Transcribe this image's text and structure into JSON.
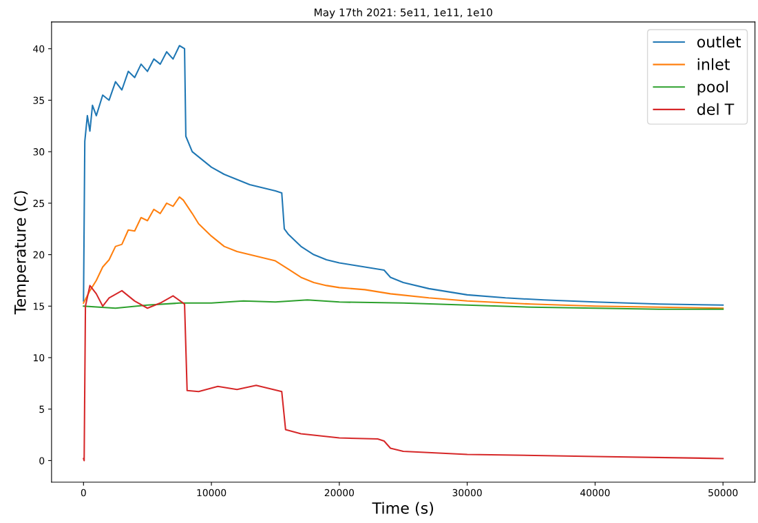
{
  "chart_data": {
    "type": "line",
    "title": "May 17th 2021: 5e11, 1e11, 1e10",
    "xlabel": "Time (s)",
    "ylabel": "Temperature (C)",
    "xlim": [
      -2500,
      52500
    ],
    "ylim": [
      -2.1,
      42.6
    ],
    "xticks": [
      0,
      10000,
      20000,
      30000,
      40000,
      50000
    ],
    "yticks": [
      0,
      5,
      10,
      15,
      20,
      25,
      30,
      35,
      40
    ],
    "grid": false,
    "legend": "top right",
    "marker": "none",
    "line_style": "solid",
    "series": [
      {
        "name": "outlet",
        "color": "#1f77b4",
        "x": [
          0,
          100,
          300,
          500,
          700,
          1000,
          1500,
          2000,
          2500,
          3000,
          3500,
          4000,
          4500,
          5000,
          5500,
          6000,
          6500,
          7000,
          7500,
          7900,
          8000,
          8500,
          9000,
          10000,
          11000,
          12000,
          13000,
          14000,
          15000,
          15500,
          15700,
          16000,
          17000,
          18000,
          19000,
          20000,
          21000,
          22000,
          23000,
          23500,
          24000,
          25000,
          27000,
          30000,
          33000,
          36000,
          40000,
          45000,
          50000
        ],
        "values": [
          15.5,
          31,
          33.5,
          32,
          34.5,
          33.5,
          35.5,
          35,
          36.8,
          36,
          37.8,
          37.2,
          38.5,
          37.8,
          39,
          38.5,
          39.7,
          39,
          40.3,
          40,
          31.5,
          30,
          29.5,
          28.5,
          27.8,
          27.3,
          26.8,
          26.5,
          26.2,
          26,
          22.5,
          22,
          20.8,
          20,
          19.5,
          19.2,
          19,
          18.8,
          18.6,
          18.5,
          17.8,
          17.3,
          16.7,
          16.1,
          15.8,
          15.6,
          15.4,
          15.2,
          15.1
        ]
      },
      {
        "name": "inlet",
        "color": "#ff7f0e",
        "x": [
          0,
          500,
          1000,
          1500,
          2000,
          2500,
          3000,
          3500,
          4000,
          4500,
          5000,
          5500,
          6000,
          6500,
          7000,
          7500,
          7800,
          8500,
          9000,
          10000,
          11000,
          12000,
          13000,
          14000,
          15000,
          16000,
          17000,
          18000,
          19000,
          20000,
          22000,
          24000,
          27000,
          30000,
          35000,
          40000,
          45000,
          50000
        ],
        "values": [
          15.3,
          16.5,
          17.5,
          18.8,
          19.5,
          20.8,
          21,
          22.4,
          22.3,
          23.6,
          23.3,
          24.4,
          24,
          25,
          24.7,
          25.6,
          25.3,
          24,
          23,
          21.8,
          20.8,
          20.3,
          20,
          19.7,
          19.4,
          18.6,
          17.8,
          17.3,
          17,
          16.8,
          16.6,
          16.2,
          15.8,
          15.5,
          15.2,
          15,
          14.9,
          14.8
        ]
      },
      {
        "name": "pool",
        "color": "#2ca02c",
        "x": [
          0,
          2500,
          5000,
          7500,
          10000,
          12500,
          15000,
          17500,
          20000,
          25000,
          30000,
          35000,
          40000,
          45000,
          50000
        ],
        "values": [
          15,
          14.8,
          15.1,
          15.3,
          15.3,
          15.5,
          15.4,
          15.6,
          15.4,
          15.3,
          15.1,
          14.9,
          14.8,
          14.7,
          14.7
        ]
      },
      {
        "name": "del T",
        "color": "#d62728",
        "x": [
          0,
          50,
          150,
          500,
          1000,
          1500,
          2000,
          3000,
          4000,
          5000,
          6000,
          7000,
          7900,
          8100,
          9000,
          10500,
          12000,
          13500,
          15500,
          15800,
          17000,
          20000,
          23000,
          23500,
          24000,
          25000,
          30000,
          40000,
          50000
        ],
        "values": [
          0.2,
          0,
          15,
          17,
          16.2,
          15,
          15.8,
          16.5,
          15.5,
          14.8,
          15.3,
          16,
          15.2,
          6.8,
          6.7,
          7.2,
          6.9,
          7.3,
          6.7,
          3,
          2.6,
          2.2,
          2.1,
          1.9,
          1.2,
          0.9,
          0.6,
          0.4,
          0.2
        ]
      }
    ]
  }
}
